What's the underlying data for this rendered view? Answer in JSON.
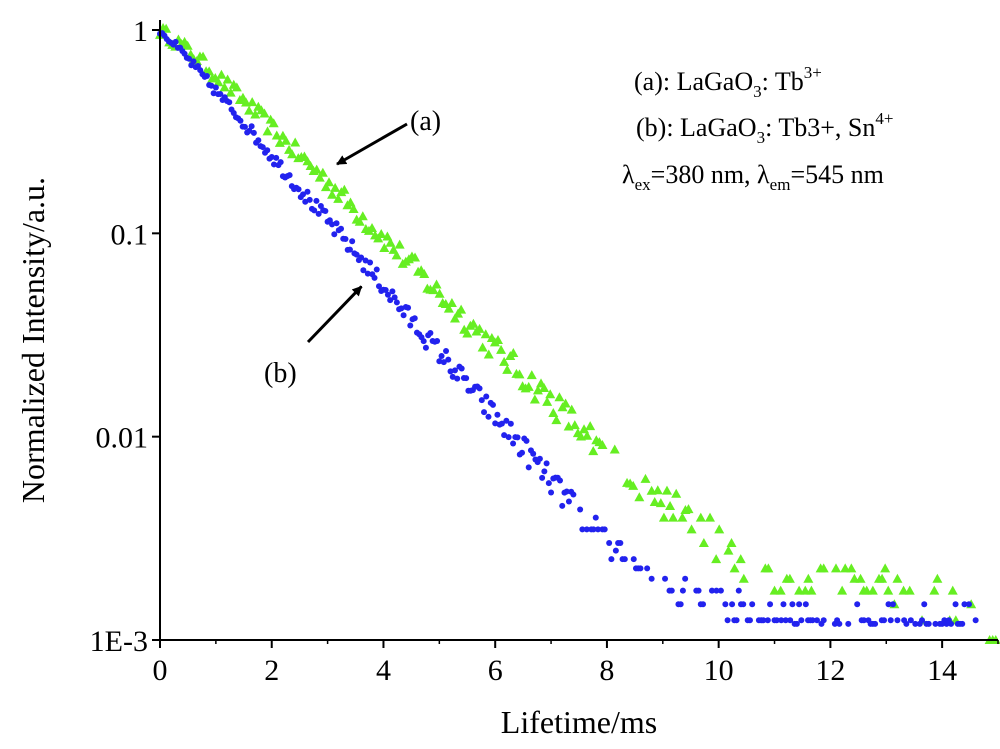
{
  "chart_data": {
    "type": "scatter",
    "title": "",
    "xlabel": "Lifetime/ms",
    "ylabel": "Normalized Intensity/a.u.",
    "xlim": [
      0,
      15
    ],
    "ylim": [
      0.001,
      1
    ],
    "yscale": "log",
    "xticks": [
      0,
      2,
      4,
      6,
      8,
      10,
      12,
      14
    ],
    "xtick_labels": [
      "0",
      "2",
      "4",
      "6",
      "8",
      "10",
      "12",
      "14"
    ],
    "yticks": [
      1,
      0.1,
      0.01,
      0.001
    ],
    "ytick_labels": [
      "1",
      "0.1",
      "0.01",
      "1E-3"
    ],
    "grid": false,
    "series": [
      {
        "name": "(a): LaGaO3: Tb3+",
        "color": "#66ee22",
        "marker": "triangle",
        "x": [
          0.0,
          0.5,
          1.0,
          1.5,
          2.0,
          2.5,
          3.0,
          3.5,
          4.0,
          4.5,
          5.0,
          5.5,
          6.0,
          6.5,
          7.0,
          7.5,
          8.0,
          8.5,
          9.0,
          9.5,
          10.0,
          11.0,
          12.0,
          13.0,
          14.0,
          15.0
        ],
        "y": [
          1.0,
          0.8,
          0.6,
          0.45,
          0.33,
          0.24,
          0.18,
          0.13,
          0.095,
          0.07,
          0.05,
          0.037,
          0.027,
          0.02,
          0.015,
          0.011,
          0.008,
          0.006,
          0.005,
          0.004,
          0.003,
          0.002,
          0.002,
          0.002,
          0.0015,
          0.001
        ]
      },
      {
        "name": "(b): LaGaO3: Tb3+, Sn4+",
        "color": "#2222ee",
        "marker": "circle",
        "x": [
          0.0,
          0.5,
          1.0,
          1.5,
          2.0,
          2.5,
          3.0,
          3.5,
          4.0,
          4.5,
          5.0,
          5.5,
          6.0,
          6.5,
          7.0,
          7.5,
          8.0,
          8.5,
          9.0,
          10.0,
          11.0,
          12.0,
          13.0,
          14.0
        ],
        "y": [
          1.0,
          0.72,
          0.5,
          0.35,
          0.24,
          0.165,
          0.115,
          0.08,
          0.055,
          0.037,
          0.026,
          0.018,
          0.0125,
          0.0088,
          0.006,
          0.0042,
          0.003,
          0.0025,
          0.002,
          0.0015,
          0.0013,
          0.0012,
          0.0012,
          0.0012
        ]
      }
    ],
    "annotations": [
      {
        "text": "(a)",
        "series": 0,
        "arrow_to": [
          2.9,
          0.2
        ]
      },
      {
        "text": "(b)",
        "series": 1,
        "arrow_to": [
          3.75,
          0.06
        ]
      }
    ],
    "legend_text": {
      "line1": {
        "main": "(a): LaGaO",
        "sub": "3",
        "mid": ": Tb",
        "sup": "3+"
      },
      "line2": {
        "main": "(b): LaGaO",
        "sub": "3",
        "mid": ": Tb3+, Sn",
        "sup": "4+"
      },
      "line3": {
        "lambda1": "λ",
        "sub1": "ex",
        "val1": "=380 nm, ",
        "lambda2": "λ",
        "sub2": "em",
        "val2": "=545 nm"
      }
    },
    "legend_position": "top-right"
  }
}
